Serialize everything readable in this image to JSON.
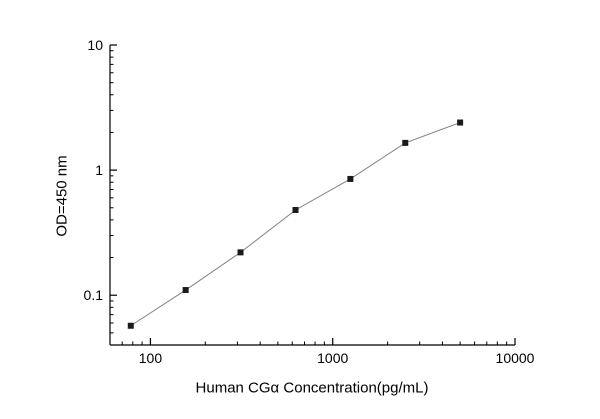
{
  "chart_data": {
    "type": "line",
    "title": "",
    "xlabel": "Human CGα  Concentration(pg/mL)",
    "ylabel": "OD=450 nm",
    "xscale": "log",
    "yscale": "log",
    "x": [
      78,
      156,
      312,
      625,
      1250,
      2500,
      5000
    ],
    "y": [
      0.057,
      0.11,
      0.22,
      0.48,
      0.85,
      1.65,
      2.4
    ],
    "xlim": [
      60,
      10000
    ],
    "ylim": [
      0.04,
      10
    ],
    "xticks": [
      {
        "value": 100,
        "label": "100"
      },
      {
        "value": 1000,
        "label": "1000"
      },
      {
        "value": 10000,
        "label": "10000"
      }
    ],
    "yticks": [
      {
        "value": 0.1,
        "label": "0.1"
      },
      {
        "value": 1,
        "label": "1"
      },
      {
        "value": 10,
        "label": "10"
      }
    ],
    "grid": false,
    "legend": null,
    "marker": "square",
    "marker_color": "#1a1a1a",
    "line_color": "#808080",
    "axis_color": "#000000",
    "background_color": "#ffffff"
  }
}
